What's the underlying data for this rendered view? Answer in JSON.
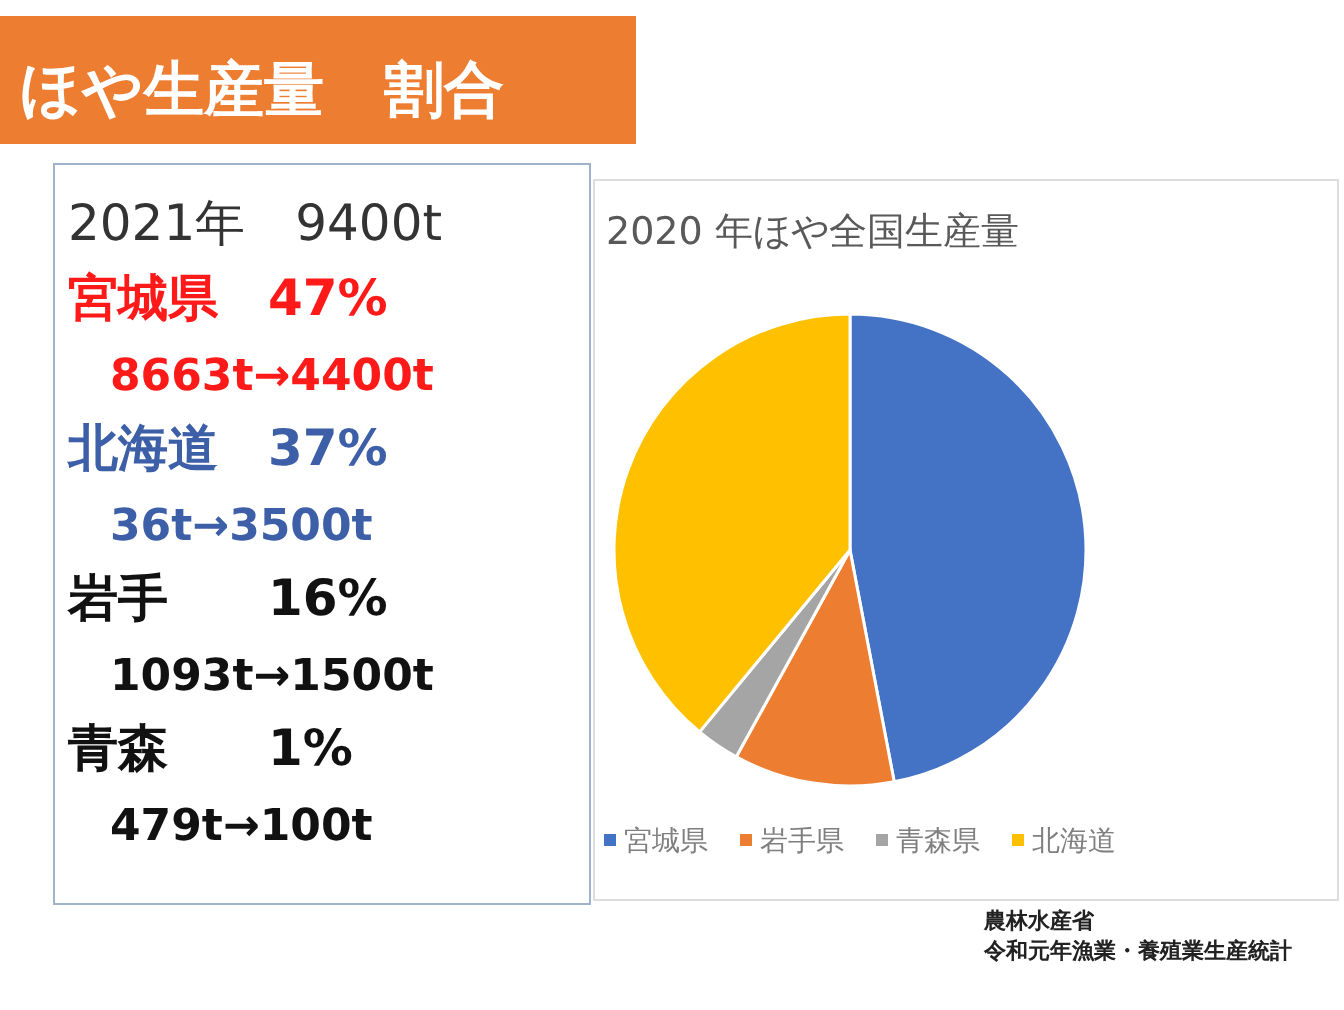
{
  "chart_data": [
    {
      "type": "other",
      "title": "ほや生産量　割合",
      "annotations": [
        "2021年　9400t",
        "宮城県　47%",
        "8663t→4400t",
        "北海道　37%",
        "36t→3500t",
        "岩手　　16%",
        "1093t→1500t",
        "青森　　1%",
        "479t→100t"
      ]
    },
    {
      "type": "pie",
      "title": "2020 年ほや全国生産量",
      "categories": [
        "宮城県",
        "岩手県",
        "青森県",
        "北海道"
      ],
      "values": [
        47,
        11,
        3,
        39
      ],
      "colors": [
        "#4472c4",
        "#ed7d31",
        "#a5a5a5",
        "#ffc000"
      ],
      "legend": "bottom",
      "annotations": [
        "農林水産省",
        "令和元年漁業・養殖業生産統計"
      ]
    }
  ]
}
